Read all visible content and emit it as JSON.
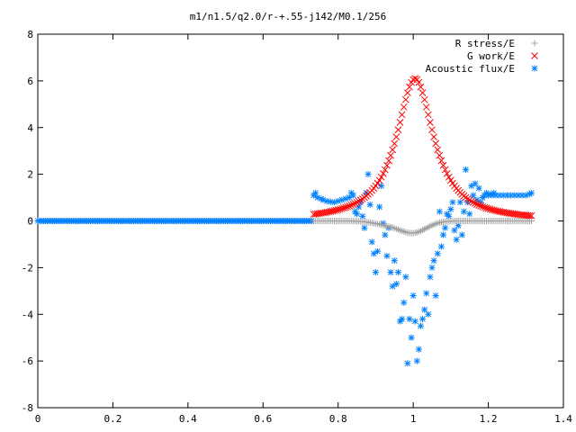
{
  "chart_data": {
    "type": "scatter",
    "title": "m1/n1.5/q2.0/r-+.55-j142/M0.1/256",
    "xlabel": "",
    "ylabel": "",
    "xlim": [
      0,
      1.4
    ],
    "ylim": [
      -8,
      8
    ],
    "x_ticks": [
      "0",
      "0.2",
      "0.4",
      "0.6",
      "0.8",
      "1",
      "1.2",
      "1.4"
    ],
    "y_ticks": [
      "-8",
      "-6",
      "-4",
      "-2",
      "0",
      "2",
      "4",
      "6",
      "8"
    ],
    "grid": false,
    "legend_position": "top-right",
    "series": [
      {
        "name": "R stress/E",
        "marker": "plus",
        "color": "#a0a0a0"
      },
      {
        "name": "G work/E",
        "marker": "cross",
        "color": "#ff0000"
      },
      {
        "name": "Acoustic flux/E",
        "marker": "star",
        "color": "#0080ff",
        "scatter_points": [
          [
            0.735,
            1.1
          ],
          [
            0.74,
            1.2
          ],
          [
            0.745,
            1.0
          ],
          [
            0.755,
            0.95
          ],
          [
            0.76,
            0.9
          ],
          [
            0.77,
            0.85
          ],
          [
            0.78,
            0.82
          ],
          [
            0.79,
            0.8
          ],
          [
            0.8,
            0.85
          ],
          [
            0.81,
            0.9
          ],
          [
            0.82,
            0.95
          ],
          [
            0.83,
            1.0
          ],
          [
            0.835,
            1.2
          ],
          [
            0.84,
            1.1
          ],
          [
            0.845,
            0.4
          ],
          [
            0.85,
            0.3
          ],
          [
            0.855,
            0.6
          ],
          [
            0.86,
            0.8
          ],
          [
            0.865,
            0.2
          ],
          [
            0.87,
            -0.3
          ],
          [
            0.875,
            1.2
          ],
          [
            0.88,
            2.0
          ],
          [
            0.885,
            0.7
          ],
          [
            0.89,
            -0.9
          ],
          [
            0.895,
            -1.4
          ],
          [
            0.9,
            -2.2
          ],
          [
            0.905,
            -1.3
          ],
          [
            0.91,
            0.6
          ],
          [
            0.915,
            1.5
          ],
          [
            0.92,
            -0.1
          ],
          [
            0.925,
            -0.6
          ],
          [
            0.93,
            -1.5
          ],
          [
            0.935,
            -0.3
          ],
          [
            0.94,
            -2.2
          ],
          [
            0.945,
            -2.8
          ],
          [
            0.95,
            -1.7
          ],
          [
            0.955,
            -2.7
          ],
          [
            0.96,
            -2.2
          ],
          [
            0.965,
            -4.3
          ],
          [
            0.97,
            -4.2
          ],
          [
            0.975,
            -3.5
          ],
          [
            0.98,
            -2.4
          ],
          [
            0.985,
            -6.1
          ],
          [
            0.99,
            -4.2
          ],
          [
            0.995,
            -5.0
          ],
          [
            1.0,
            -3.2
          ],
          [
            1.005,
            -4.3
          ],
          [
            1.01,
            -6.0
          ],
          [
            1.015,
            -5.5
          ],
          [
            1.02,
            -4.5
          ],
          [
            1.025,
            -4.2
          ],
          [
            1.03,
            -3.8
          ],
          [
            1.035,
            -3.1
          ],
          [
            1.04,
            -4.0
          ],
          [
            1.045,
            -2.4
          ],
          [
            1.05,
            -2.0
          ],
          [
            1.055,
            -1.7
          ],
          [
            1.06,
            -3.2
          ],
          [
            1.065,
            -1.4
          ],
          [
            1.07,
            0.4
          ],
          [
            1.075,
            -1.1
          ],
          [
            1.08,
            -0.6
          ],
          [
            1.085,
            -0.3
          ],
          [
            1.09,
            0.3
          ],
          [
            1.095,
            0.2
          ],
          [
            1.1,
            0.5
          ],
          [
            1.105,
            0.8
          ],
          [
            1.11,
            -0.4
          ],
          [
            1.115,
            -0.8
          ],
          [
            1.12,
            -0.2
          ],
          [
            1.125,
            0.8
          ],
          [
            1.13,
            -0.6
          ],
          [
            1.135,
            0.4
          ],
          [
            1.14,
            2.2
          ],
          [
            1.145,
            0.8
          ],
          [
            1.15,
            0.3
          ],
          [
            1.155,
            1.5
          ],
          [
            1.16,
            1.1
          ],
          [
            1.165,
            1.6
          ],
          [
            1.17,
            0.9
          ],
          [
            1.175,
            1.4
          ],
          [
            1.18,
            0.8
          ],
          [
            1.185,
            1.0
          ],
          [
            1.19,
            1.1
          ],
          [
            1.195,
            1.2
          ],
          [
            1.2,
            1.1
          ],
          [
            1.205,
            1.15
          ],
          [
            1.21,
            1.1
          ],
          [
            1.215,
            1.2
          ],
          [
            1.22,
            1.1
          ],
          [
            1.23,
            1.1
          ],
          [
            1.24,
            1.1
          ],
          [
            1.25,
            1.1
          ],
          [
            1.26,
            1.1
          ],
          [
            1.27,
            1.1
          ],
          [
            1.28,
            1.1
          ],
          [
            1.29,
            1.1
          ],
          [
            1.3,
            1.1
          ],
          [
            1.31,
            1.15
          ],
          [
            1.315,
            1.2
          ]
        ]
      }
    ]
  }
}
